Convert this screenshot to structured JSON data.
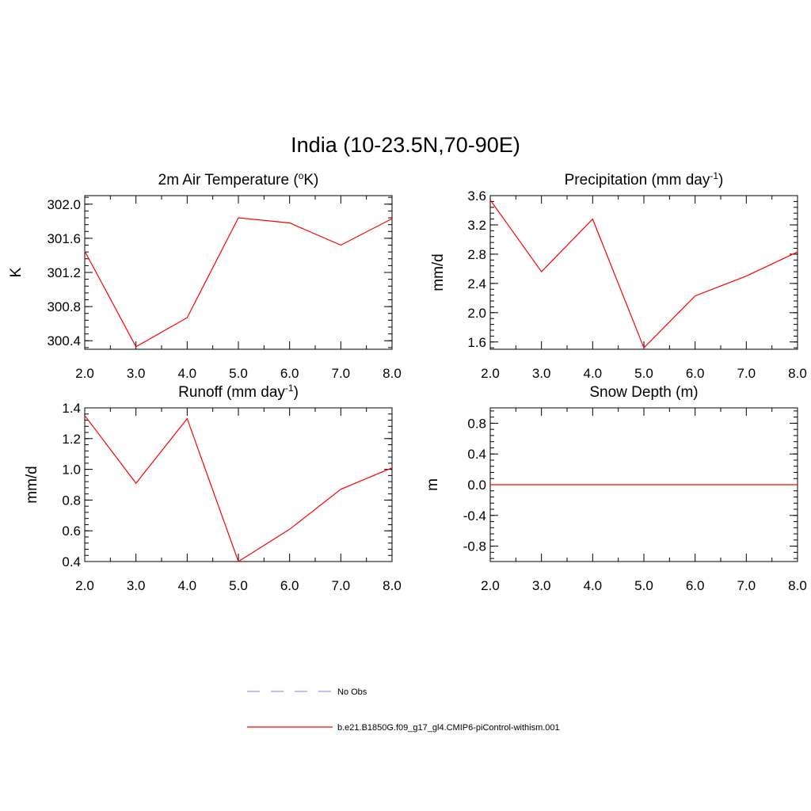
{
  "figure": {
    "title": "India (10-23.5N,70-90E)"
  },
  "legend": {
    "entries": [
      {
        "label": "No Obs",
        "color": "#9999ff",
        "dashed": true
      },
      {
        "label": "b.e21.B1850G.f09_g17_gl4.CMIP6-piControl-withism.001",
        "color": "#ff0000",
        "dashed": false
      }
    ],
    "placement": "bottom-center"
  },
  "chart_data": [
    {
      "type": "line",
      "title": "2m Air Temperature (",
      "title_sup": "o",
      "title_after": "K)",
      "ylabel": "K",
      "xlabel": "",
      "x": [
        2,
        3,
        4,
        5,
        6,
        7,
        8
      ],
      "xticks": [
        "2.0",
        "3.0",
        "4.0",
        "5.0",
        "6.0",
        "7.0",
        "8.0"
      ],
      "xlim": [
        2,
        8
      ],
      "ylim": [
        300.3,
        302.1
      ],
      "yticks": [
        300.4,
        300.8,
        301.2,
        301.6,
        302.0
      ],
      "ytick_labels": [
        "300.4",
        "300.8",
        "301.2",
        "301.6",
        "302.0"
      ],
      "yminor_step": 0.08,
      "series": [
        {
          "values": [
            301.45,
            300.33,
            300.67,
            301.84,
            301.78,
            301.52,
            301.83
          ],
          "color": "#ff0000"
        }
      ]
    },
    {
      "type": "line",
      "title": "Precipitation (mm day",
      "title_sup": "-1",
      "title_after": ")",
      "ylabel": "mm/d",
      "xlabel": "",
      "x": [
        2,
        3,
        4,
        5,
        6,
        7,
        8
      ],
      "xticks": [
        "2.0",
        "3.0",
        "4.0",
        "5.0",
        "6.0",
        "7.0",
        "8.0"
      ],
      "xlim": [
        2,
        8
      ],
      "ylim": [
        1.5,
        3.6
      ],
      "yticks": [
        1.6,
        2.0,
        2.4,
        2.8,
        3.2,
        3.6
      ],
      "ytick_labels": [
        "1.6",
        "2.0",
        "2.4",
        "2.8",
        "3.2",
        "3.6"
      ],
      "yminor_step": 0.08,
      "series": [
        {
          "values": [
            3.54,
            2.56,
            3.28,
            1.52,
            2.23,
            2.5,
            2.83
          ],
          "color": "#ff0000"
        }
      ]
    },
    {
      "type": "line",
      "title": "Runoff (mm day",
      "title_sup": "-1",
      "title_after": ")",
      "ylabel": "mm/d",
      "xlabel": "",
      "x": [
        2,
        3,
        4,
        5,
        6,
        7,
        8
      ],
      "xticks": [
        "2.0",
        "3.0",
        "4.0",
        "5.0",
        "6.0",
        "7.0",
        "8.0"
      ],
      "xlim": [
        2,
        8
      ],
      "ylim": [
        0.4,
        1.4
      ],
      "yticks": [
        0.4,
        0.6,
        0.8,
        1.0,
        1.2,
        1.4
      ],
      "ytick_labels": [
        "0.4",
        "0.6",
        "0.8",
        "1.0",
        "1.2",
        "1.4"
      ],
      "yminor_step": 0.04,
      "series": [
        {
          "values": [
            1.35,
            0.91,
            1.33,
            0.4,
            0.61,
            0.87,
            1.01
          ],
          "color": "#ff0000"
        }
      ]
    },
    {
      "type": "line",
      "title": "Snow Depth (m)",
      "title_sup": "",
      "title_after": "",
      "ylabel": "m",
      "xlabel": "",
      "x": [
        2,
        3,
        4,
        5,
        6,
        7,
        8
      ],
      "xticks": [
        "2.0",
        "3.0",
        "4.0",
        "5.0",
        "6.0",
        "7.0",
        "8.0"
      ],
      "xlim": [
        2,
        8
      ],
      "ylim": [
        -1.0,
        1.0
      ],
      "yticks": [
        -0.8,
        -0.4,
        0.0,
        0.4,
        0.8
      ],
      "ytick_labels": [
        "-0.8",
        "-0.4",
        "0.0",
        "0.4",
        "0.8"
      ],
      "yminor_step": 0.08,
      "series": [
        {
          "values": [
            0,
            0,
            0,
            0,
            0,
            0,
            0
          ],
          "color": "#ff0000"
        }
      ]
    }
  ]
}
